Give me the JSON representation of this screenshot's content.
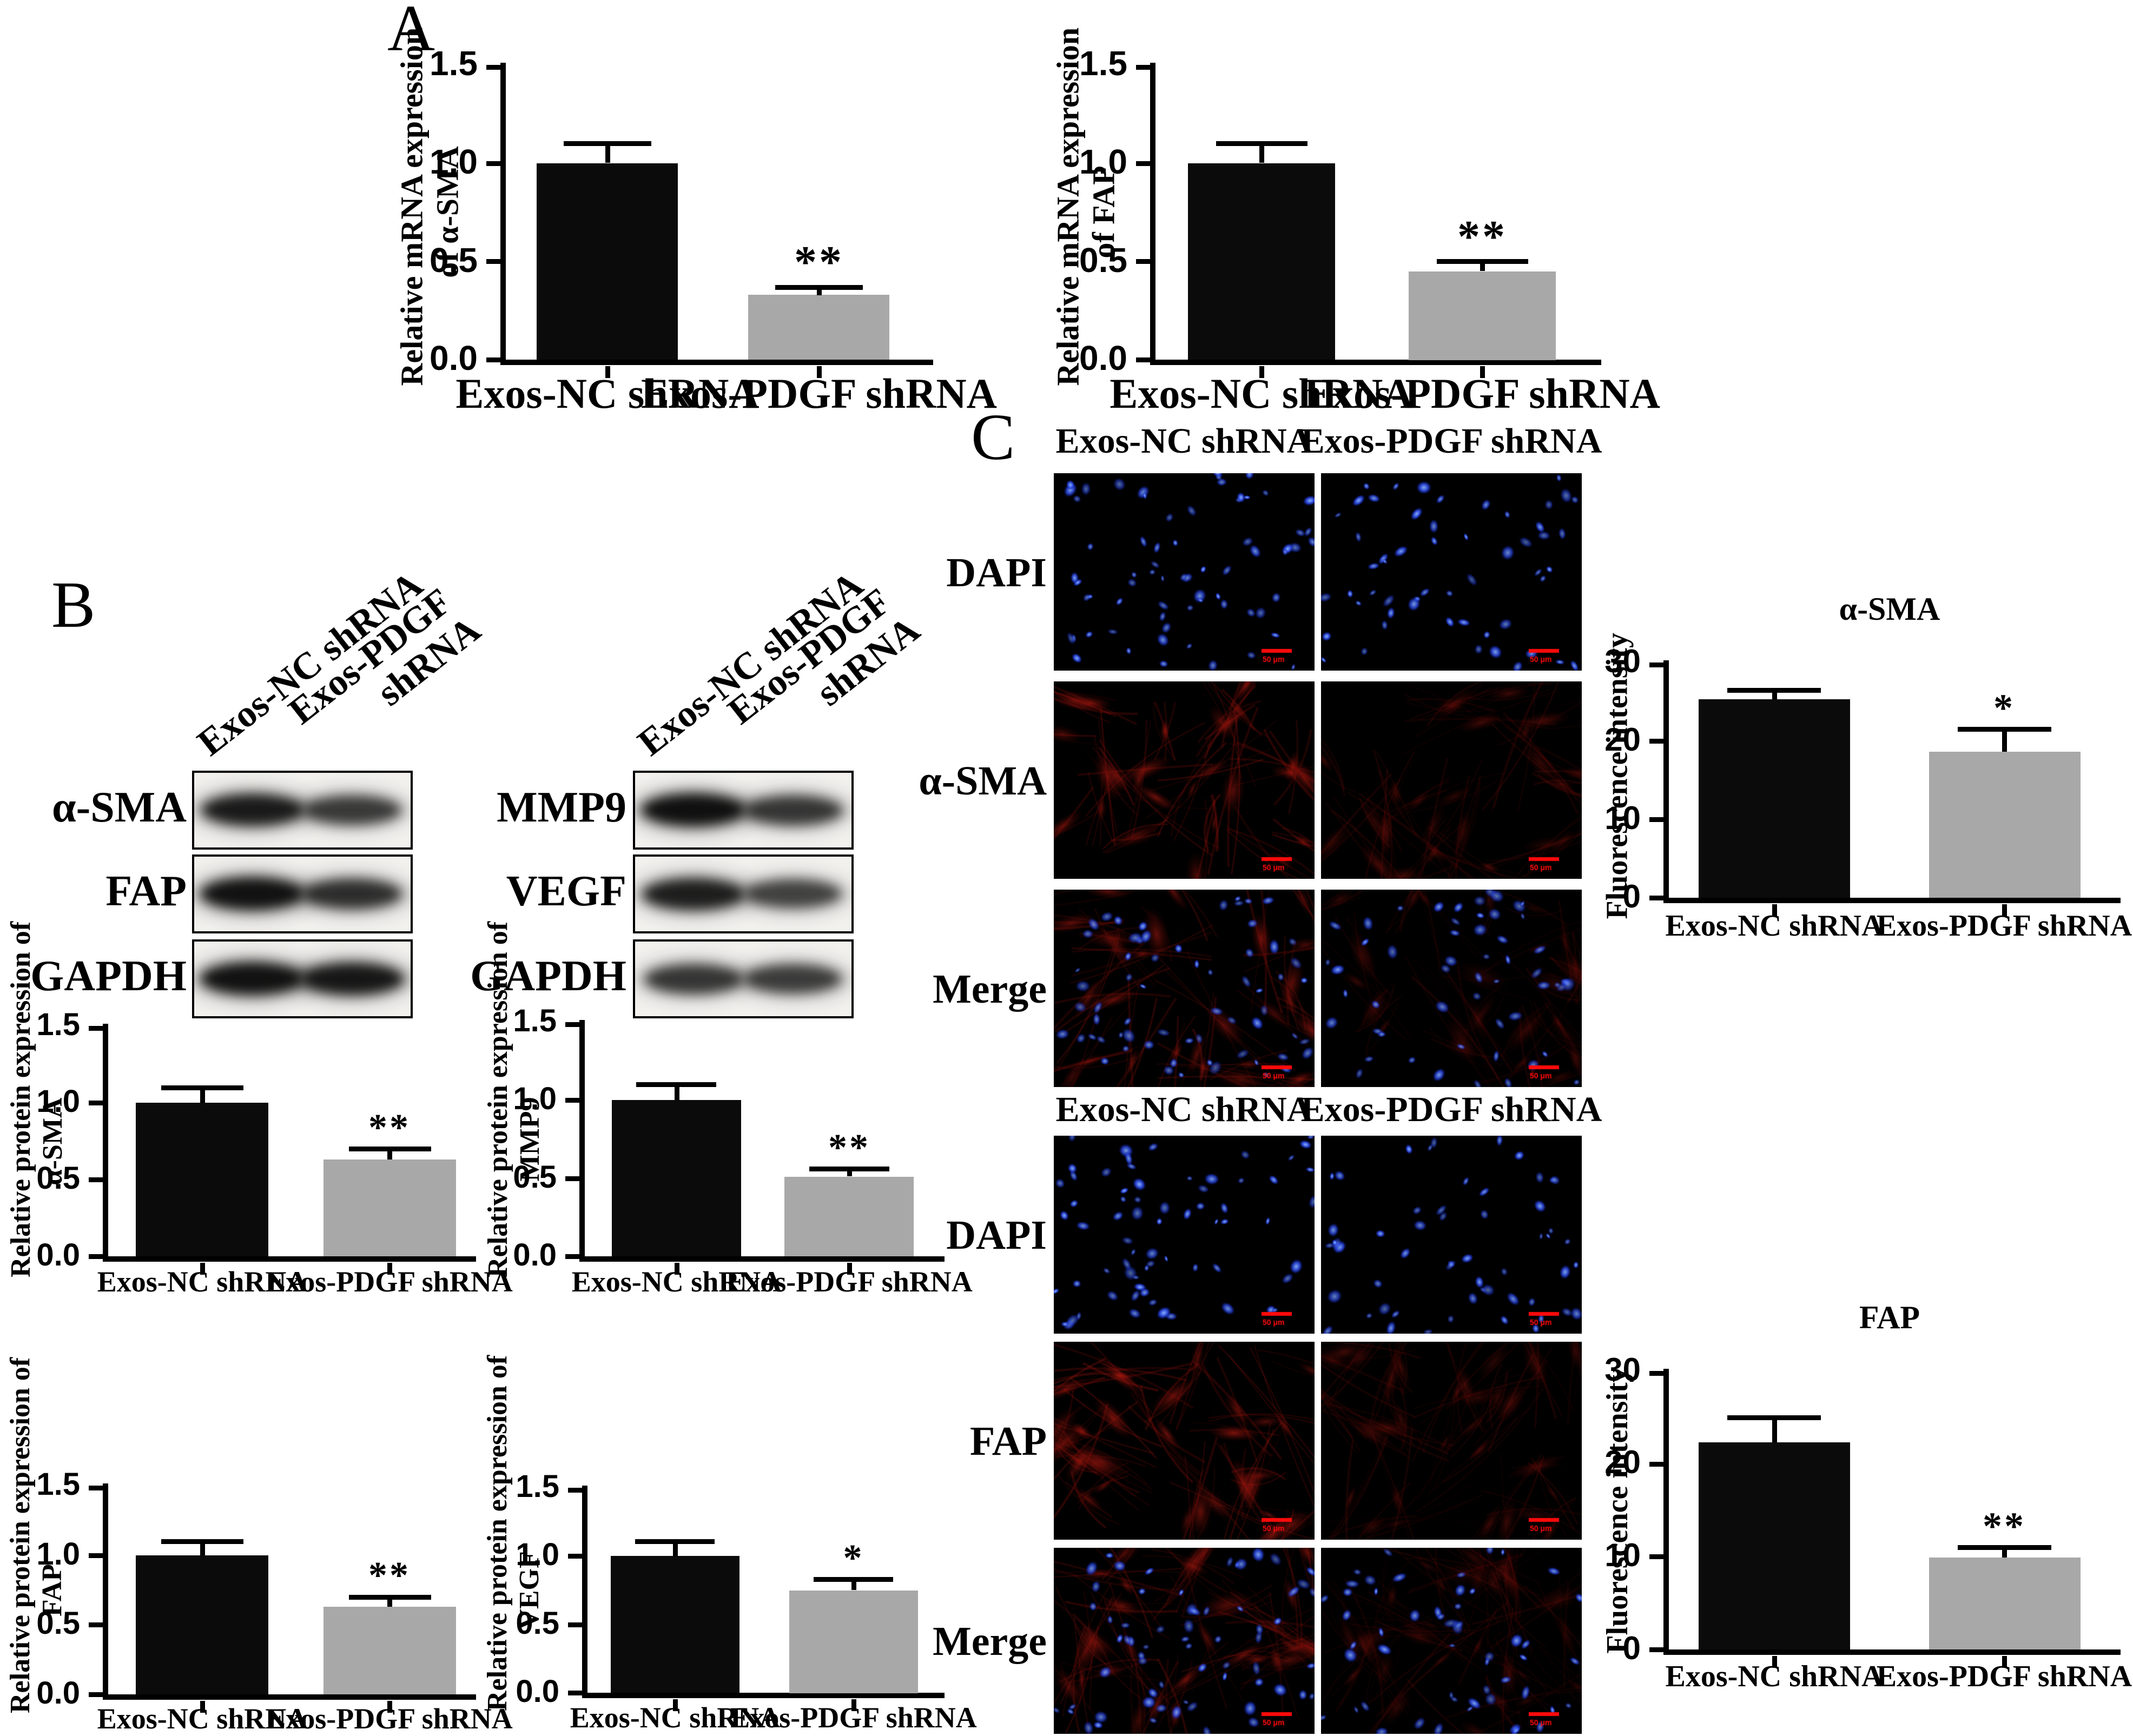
{
  "figure": {
    "panel_labels": [
      "A",
      "B",
      "C"
    ],
    "background": "#ffffff"
  },
  "groups": [
    "Exos-NC shRNA",
    "Exos-PDGF shRNA"
  ],
  "colors": {
    "bar_black": "#0b0b0b",
    "bar_gray": "#a8a8a8",
    "axis_black": "#000000",
    "scalebar_red": "#ff0a0a",
    "dapi_blue": "#2a4bee",
    "stain_red": "#c01812"
  },
  "chart_data": [
    {
      "id": "mrna_asma",
      "type": "bar",
      "title": "",
      "ylabel": "Relative mRNA expression of α-SMA",
      "ylabel_lines": [
        "Relative mRNA expression",
        "of α-SMA"
      ],
      "categories": [
        "Exos-NC shRNA",
        "Exos-PDGF shRNA"
      ],
      "values": [
        1.0,
        0.33
      ],
      "errors": [
        0.1,
        0.04
      ],
      "significance": [
        "",
        "**"
      ],
      "ylim": [
        0,
        1.5
      ],
      "yticks": [
        "0.0",
        "0.5",
        "1.0",
        "1.5"
      ],
      "legend": "none",
      "grid": false
    },
    {
      "id": "mrna_fap",
      "type": "bar",
      "title": "",
      "ylabel": "Relative mRNA expression of FAP",
      "ylabel_lines": [
        "Relative mRNA expression",
        "of FAP"
      ],
      "categories": [
        "Exos-NC shRNA",
        "Exos-PDGF shRNA"
      ],
      "values": [
        1.0,
        0.45
      ],
      "errors": [
        0.1,
        0.05
      ],
      "significance": [
        "",
        "**"
      ],
      "ylim": [
        0,
        1.5
      ],
      "yticks": [
        "0.0",
        "0.5",
        "1.0",
        "1.5"
      ],
      "legend": "none",
      "grid": false
    },
    {
      "id": "prot_asma",
      "type": "bar",
      "title": "",
      "ylabel": "Relative protein expression of α-SMA",
      "ylabel_lines": [
        "Relative protein expression of",
        "α-SMA"
      ],
      "categories": [
        "Exos-NC shRNA",
        "Exos-PDGF shRNA"
      ],
      "values": [
        1.0,
        0.63
      ],
      "errors": [
        0.1,
        0.07
      ],
      "significance": [
        "",
        "**"
      ],
      "ylim": [
        0,
        1.5
      ],
      "yticks": [
        "0.0",
        "0.5",
        "1.0",
        "1.5"
      ],
      "legend": "none",
      "grid": false
    },
    {
      "id": "prot_mmp9",
      "type": "bar",
      "title": "",
      "ylabel": "Relative protein expression of MMP9",
      "ylabel_lines": [
        "Relative protein expression of",
        "MMP9"
      ],
      "categories": [
        "Exos-NC shRNA",
        "Exos-PDGF shRNA"
      ],
      "values": [
        1.0,
        0.51
      ],
      "errors": [
        0.1,
        0.05
      ],
      "significance": [
        "",
        "**"
      ],
      "ylim": [
        0,
        1.5
      ],
      "yticks": [
        "0.0",
        "0.5",
        "1.0",
        "1.5"
      ],
      "legend": "none",
      "grid": false
    },
    {
      "id": "prot_fap",
      "type": "bar",
      "title": "",
      "ylabel": "Relative protein expression of FAP",
      "ylabel_lines": [
        "Relative protein expression of",
        "FAP"
      ],
      "categories": [
        "Exos-NC shRNA",
        "Exos-PDGF shRNA"
      ],
      "values": [
        1.0,
        0.63
      ],
      "errors": [
        0.1,
        0.07
      ],
      "significance": [
        "",
        "**"
      ],
      "ylim": [
        0,
        1.5
      ],
      "yticks": [
        "0.0",
        "0.5",
        "1.0",
        "1.5"
      ],
      "legend": "none",
      "grid": false
    },
    {
      "id": "prot_vegf",
      "type": "bar",
      "title": "",
      "ylabel": "Relative protein expression of VEGF",
      "ylabel_lines": [
        "Relative protein expression of",
        "VEGF"
      ],
      "categories": [
        "Exos-NC shRNA",
        "Exos-PDGF shRNA"
      ],
      "values": [
        1.0,
        0.75
      ],
      "errors": [
        0.11,
        0.08
      ],
      "significance": [
        "",
        "*"
      ],
      "ylim": [
        0,
        1.5
      ],
      "yticks": [
        "0.0",
        "0.5",
        "1.0",
        "1.5"
      ],
      "legend": "none",
      "grid": false
    },
    {
      "id": "fluor_asma",
      "type": "bar",
      "title": "α-SMA",
      "ylabel": "Fluorescence intensity",
      "ylabel_lines": [
        "Fluorescence intensity"
      ],
      "categories": [
        "Exos-NC shRNA",
        "Exos-PDGF shRNA"
      ],
      "values": [
        25.3,
        18.6
      ],
      "errors": [
        1.2,
        2.9
      ],
      "significance": [
        "",
        "*"
      ],
      "ylim": [
        0,
        30
      ],
      "yticks": [
        "0",
        "10",
        "20",
        "30"
      ],
      "legend": "none",
      "grid": false
    },
    {
      "id": "fluor_fap",
      "type": "bar",
      "title": "FAP",
      "ylabel": "Fluorescence intensity",
      "ylabel_lines": [
        "Fluorescence intensity"
      ],
      "categories": [
        "Exos-NC shRNA",
        "Exos-PDGF shRNA"
      ],
      "values": [
        22.3,
        9.9
      ],
      "errors": [
        2.7,
        1.1
      ],
      "significance": [
        "",
        "**"
      ],
      "ylim": [
        0,
        30
      ],
      "yticks": [
        "0",
        "10",
        "20",
        "30"
      ],
      "legend": "none",
      "grid": false
    }
  ],
  "blots": {
    "diagonal_labels": [
      [
        "Exos-NC shRNA"
      ],
      [
        "Exos-PDGF",
        "shRNA"
      ]
    ],
    "groups": [
      {
        "rows": [
          {
            "label": "α-SMA",
            "lane_intensity": [
              0.92,
              0.76
            ]
          },
          {
            "label": "FAP",
            "lane_intensity": [
              0.97,
              0.82
            ]
          },
          {
            "label": "GAPDH",
            "lane_intensity": [
              0.97,
              0.94
            ]
          }
        ]
      },
      {
        "rows": [
          {
            "label": "MMP9",
            "lane_intensity": [
              0.98,
              0.78
            ]
          },
          {
            "label": "VEGF",
            "lane_intensity": [
              0.9,
              0.72
            ]
          },
          {
            "label": "GAPDH",
            "lane_intensity": [
              0.78,
              0.75
            ]
          }
        ]
      }
    ]
  },
  "microscopy": {
    "scale_bar_label": "50 μm",
    "sets": [
      {
        "columns": [
          "Exos-NC shRNA",
          "Exos-PDGF shRNA"
        ],
        "rows": [
          {
            "label": "DAPI",
            "stain": "dapi"
          },
          {
            "label": "α-SMA",
            "stain": "red"
          },
          {
            "label": "Merge",
            "stain": "merge"
          }
        ]
      },
      {
        "columns": [
          "Exos-NC shRNA",
          "Exos-PDGF shRNA"
        ],
        "rows": [
          {
            "label": "DAPI",
            "stain": "dapi"
          },
          {
            "label": "FAP",
            "stain": "red"
          },
          {
            "label": "Merge",
            "stain": "merge"
          }
        ]
      }
    ]
  }
}
